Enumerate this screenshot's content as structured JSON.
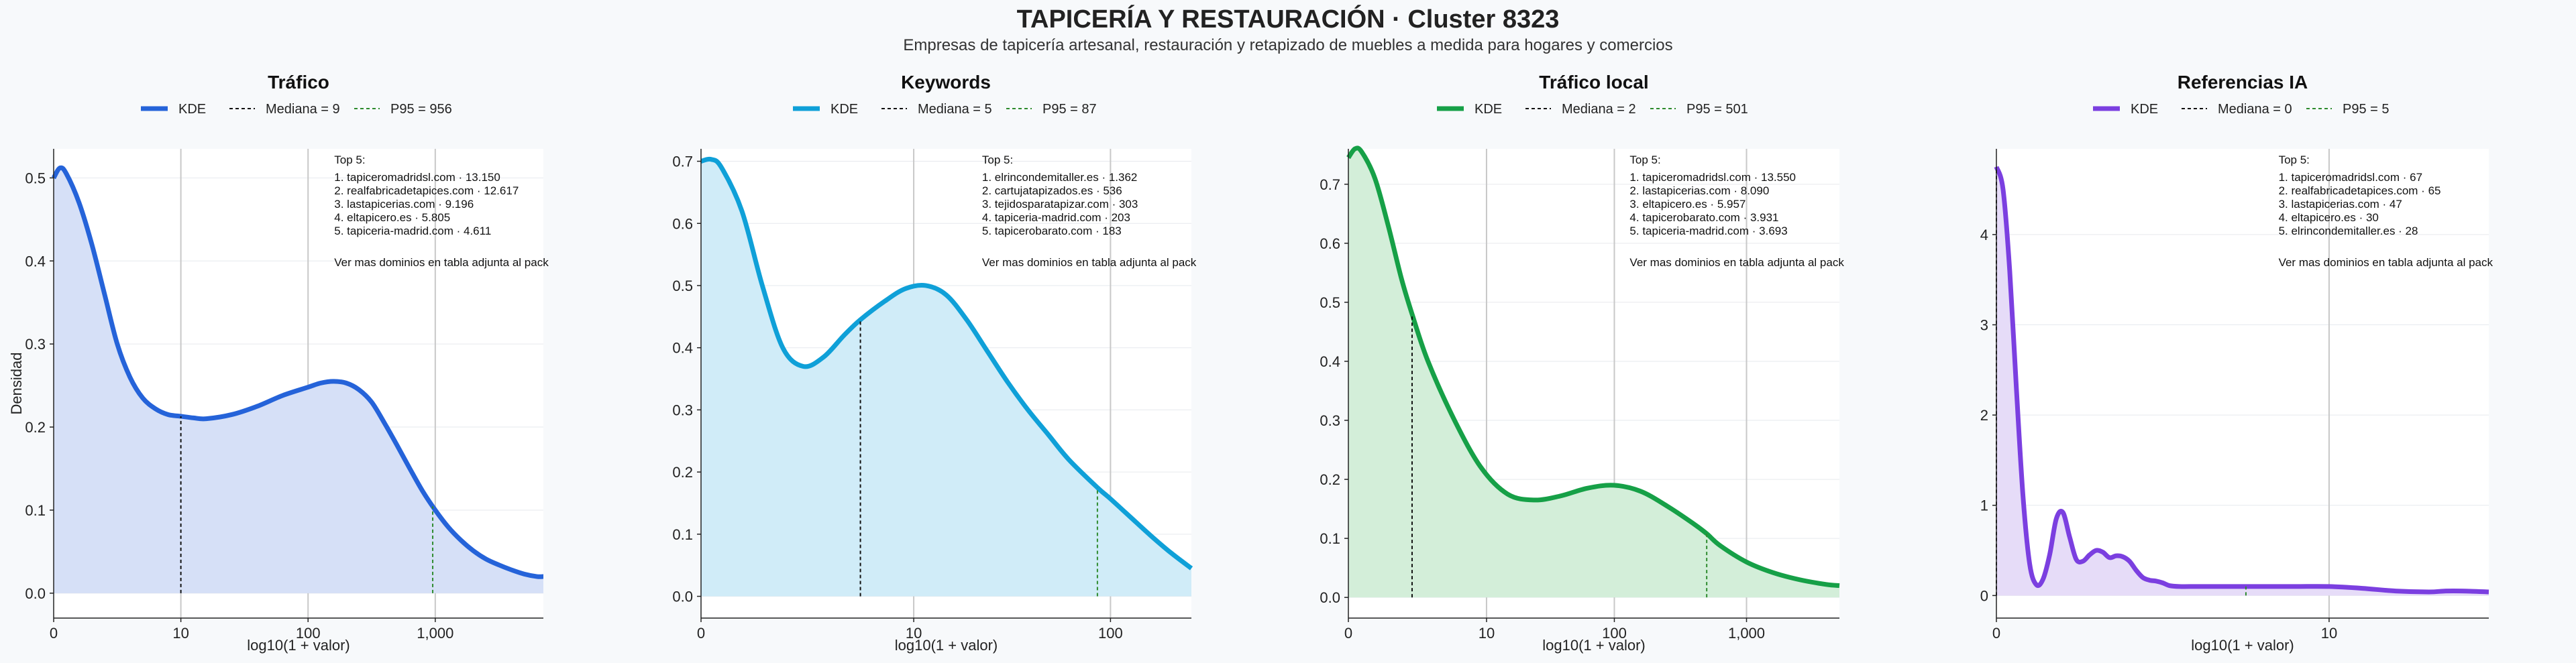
{
  "title": "TAPICERÍA Y RESTAURACIÓN · Cluster 8323",
  "subtitle": "Empresas de tapicería artesanal, restauración y retapizado de muebles a medida para hogares y comercios",
  "colors": {
    "background": "#f7f9fb",
    "grid": "#e6e9ee",
    "vline": "#c8c8c8",
    "median": "#111111",
    "p95": "#2e8b2e"
  },
  "chart_data": [
    {
      "type": "area",
      "title": "Tráfico",
      "xlabel": "log10(1 + valor)",
      "ylabel": "Densidad",
      "color": "#2563d9",
      "fill": "#d6e0f7",
      "x_scale": "log10(1+x)",
      "x_range": [
        0,
        3.85
      ],
      "x_ticks": [
        {
          "v": 0,
          "label": "0"
        },
        {
          "v": 1,
          "label": "10"
        },
        {
          "v": 2,
          "label": "100"
        },
        {
          "v": 3,
          "label": "1,000"
        }
      ],
      "y_range": [
        -0.03,
        0.535
      ],
      "y_ticks": [
        0,
        0.1,
        0.2,
        0.3,
        0.4,
        0.5
      ],
      "y_tick_labels": [
        "0.0",
        "0.1",
        "0.2",
        "0.3",
        "0.4",
        "0.5"
      ],
      "kde_x": [
        0,
        0.05,
        0.1,
        0.2,
        0.3,
        0.4,
        0.5,
        0.6,
        0.7,
        0.8,
        0.9,
        1.0,
        1.1,
        1.2,
        1.4,
        1.6,
        1.8,
        2.0,
        2.1,
        2.2,
        2.3,
        2.4,
        2.5,
        2.6,
        2.7,
        2.8,
        2.9,
        3.0,
        3.1,
        3.2,
        3.3,
        3.4,
        3.5,
        3.6,
        3.7,
        3.8,
        3.85
      ],
      "kde_y": [
        0.5,
        0.512,
        0.505,
        0.47,
        0.42,
        0.36,
        0.3,
        0.26,
        0.235,
        0.222,
        0.215,
        0.213,
        0.211,
        0.21,
        0.215,
        0.225,
        0.238,
        0.248,
        0.253,
        0.255,
        0.253,
        0.245,
        0.23,
        0.205,
        0.178,
        0.15,
        0.123,
        0.1,
        0.08,
        0.064,
        0.051,
        0.041,
        0.034,
        0.028,
        0.023,
        0.02,
        0.02
      ],
      "legend": [
        {
          "kind": "kde",
          "label": "KDE"
        },
        {
          "kind": "median",
          "label": "Mediana = 9"
        },
        {
          "kind": "p95",
          "label": "P95 = 956"
        }
      ],
      "median": 1.0,
      "p95": 2.98,
      "top5": [
        "Top 5:",
        "1. tapiceromadridsl.com · 13.150",
        "2. realfabricadetapices.com · 12.617",
        "3. lastapicerias.com · 9.196",
        "4. eltapicero.es · 5.805",
        "5. tapiceria-madrid.com · 4.611"
      ],
      "note": "Ver mas dominios en tabla adjunta al pack"
    },
    {
      "type": "area",
      "title": "Keywords",
      "xlabel": "log10(1 + valor)",
      "ylabel": "",
      "color": "#0fa0d8",
      "fill": "#d0ecf8",
      "x_scale": "log10(1+x)",
      "x_range": [
        0,
        2.4
      ],
      "x_ticks": [
        {
          "v": 0,
          "label": "0"
        },
        {
          "v": 1.041,
          "label": "10"
        },
        {
          "v": 2.004,
          "label": "100"
        }
      ],
      "y_range": [
        -0.035,
        0.72
      ],
      "y_ticks": [
        0,
        0.1,
        0.2,
        0.3,
        0.4,
        0.5,
        0.6,
        0.7
      ],
      "y_tick_labels": [
        "0.0",
        "0.1",
        "0.2",
        "0.3",
        "0.4",
        "0.5",
        "0.6",
        "0.7"
      ],
      "kde_x": [
        0,
        0.05,
        0.1,
        0.2,
        0.3,
        0.4,
        0.5,
        0.6,
        0.7,
        0.78,
        0.9,
        1.0,
        1.1,
        1.2,
        1.3,
        1.4,
        1.5,
        1.6,
        1.7,
        1.8,
        1.94,
        2.0,
        2.1,
        2.2,
        2.3,
        2.4
      ],
      "kde_y": [
        0.7,
        0.703,
        0.69,
        0.62,
        0.5,
        0.4,
        0.37,
        0.385,
        0.42,
        0.445,
        0.475,
        0.495,
        0.5,
        0.485,
        0.445,
        0.395,
        0.345,
        0.3,
        0.26,
        0.22,
        0.175,
        0.158,
        0.128,
        0.098,
        0.07,
        0.045
      ],
      "legend": [
        {
          "kind": "kde",
          "label": "KDE"
        },
        {
          "kind": "median",
          "label": "Mediana = 5"
        },
        {
          "kind": "p95",
          "label": "P95 = 87"
        }
      ],
      "median": 0.78,
      "p95": 1.94,
      "top5": [
        "Top 5:",
        "1. elrincondemitaller.es · 1.362",
        "2. cartujatapizados.es · 536",
        "3. tejidosparatapizar.com · 303",
        "4. tapiceria-madrid.com · 203",
        "5. tapicerobarato.com · 183"
      ],
      "note": "Ver mas dominios en tabla adjunta al pack"
    },
    {
      "type": "area",
      "title": "Tráfico local",
      "xlabel": "log10(1 + valor)",
      "ylabel": "",
      "color": "#16a047",
      "fill": "#d3eed9",
      "x_scale": "log10(1+x)",
      "x_range": [
        0,
        3.7
      ],
      "x_ticks": [
        {
          "v": 0,
          "label": "0"
        },
        {
          "v": 1.041,
          "label": "10"
        },
        {
          "v": 2.004,
          "label": "100"
        },
        {
          "v": 3.0,
          "label": "1,000"
        }
      ],
      "y_range": [
        -0.035,
        0.76
      ],
      "y_ticks": [
        0,
        0.1,
        0.2,
        0.3,
        0.4,
        0.5,
        0.6,
        0.7
      ],
      "y_tick_labels": [
        "0.0",
        "0.1",
        "0.2",
        "0.3",
        "0.4",
        "0.5",
        "0.6",
        "0.7"
      ],
      "kde_x": [
        0,
        0.05,
        0.1,
        0.2,
        0.3,
        0.4,
        0.48,
        0.6,
        0.8,
        1.0,
        1.2,
        1.4,
        1.6,
        1.8,
        2.0,
        2.2,
        2.4,
        2.6,
        2.7,
        2.8,
        3.0,
        3.2,
        3.4,
        3.6,
        3.7
      ],
      "kde_y": [
        0.745,
        0.76,
        0.755,
        0.71,
        0.63,
        0.54,
        0.48,
        0.4,
        0.3,
        0.22,
        0.175,
        0.165,
        0.172,
        0.185,
        0.19,
        0.18,
        0.155,
        0.125,
        0.108,
        0.088,
        0.06,
        0.042,
        0.03,
        0.022,
        0.02
      ],
      "legend": [
        {
          "kind": "kde",
          "label": "KDE"
        },
        {
          "kind": "median",
          "label": "Mediana = 2"
        },
        {
          "kind": "p95",
          "label": "P95 = 501"
        }
      ],
      "median": 0.48,
      "p95": 2.7,
      "top5": [
        "Top 5:",
        "1. tapiceromadridsl.com · 13.550",
        "2. lastapicerias.com · 8.090",
        "3. eltapicero.es · 5.957",
        "4. tapicerobarato.com · 3.931",
        "5. tapiceria-madrid.com · 3.693"
      ],
      "note": "Ver mas dominios en tabla adjunta al pack"
    },
    {
      "type": "area",
      "title": "Referencias IA",
      "xlabel": "log10(1 + valor)",
      "ylabel": "",
      "color": "#7b3fe0",
      "fill": "#e6dcf8",
      "x_scale": "log10(1+x)",
      "x_range": [
        0,
        1.48
      ],
      "x_ticks": [
        {
          "v": 0,
          "label": "0"
        },
        {
          "v": 1.0,
          "label": "10"
        }
      ],
      "y_range": [
        -0.25,
        4.95
      ],
      "y_ticks": [
        0,
        1,
        2,
        3,
        4
      ],
      "y_tick_labels": [
        "0",
        "1",
        "2",
        "3",
        "4"
      ],
      "kde_x": [
        0,
        0.02,
        0.04,
        0.06,
        0.08,
        0.1,
        0.12,
        0.14,
        0.16,
        0.18,
        0.2,
        0.22,
        0.24,
        0.26,
        0.28,
        0.3,
        0.32,
        0.34,
        0.36,
        0.38,
        0.4,
        0.42,
        0.44,
        0.46,
        0.48,
        0.5,
        0.52,
        0.55,
        0.6,
        0.65,
        0.7,
        0.75,
        0.8,
        0.9,
        1.0,
        1.1,
        1.2,
        1.3,
        1.35,
        1.4,
        1.48
      ],
      "kde_y": [
        4.75,
        4.5,
        3.6,
        2.3,
        1.1,
        0.35,
        0.12,
        0.18,
        0.45,
        0.85,
        0.92,
        0.65,
        0.4,
        0.38,
        0.45,
        0.5,
        0.48,
        0.42,
        0.44,
        0.43,
        0.38,
        0.28,
        0.2,
        0.17,
        0.16,
        0.14,
        0.11,
        0.1,
        0.1,
        0.1,
        0.1,
        0.1,
        0.1,
        0.1,
        0.1,
        0.08,
        0.05,
        0.04,
        0.05,
        0.05,
        0.04
      ],
      "legend": [
        {
          "kind": "kde",
          "label": "KDE"
        },
        {
          "kind": "median",
          "label": "Mediana = 0"
        },
        {
          "kind": "p95",
          "label": "P95 = 5"
        }
      ],
      "median": 0.0,
      "p95": 0.75,
      "top5": [
        "Top 5:",
        "1. tapiceromadridsl.com · 67",
        "2. realfabricadetapices.com · 65",
        "3. lastapicerias.com · 47",
        "4. eltapicero.es · 30",
        "5. elrincondemitaller.es · 28"
      ],
      "note": "Ver mas dominios en tabla adjunta al pack"
    }
  ]
}
